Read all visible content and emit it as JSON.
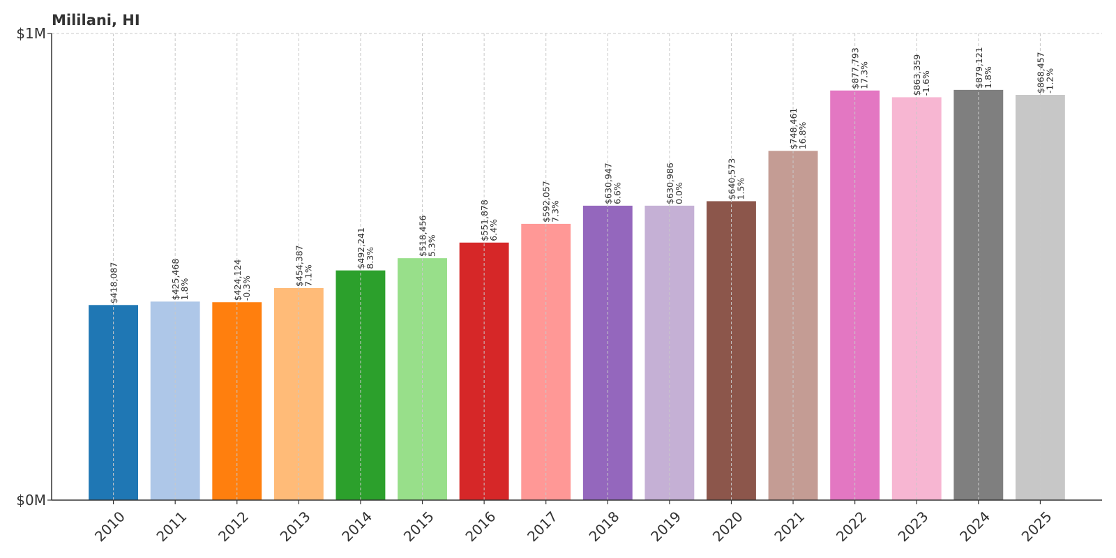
{
  "chart_data": {
    "type": "bar",
    "title": "Mililani, HI",
    "xlabel": "",
    "ylabel": "",
    "ylim": [
      0,
      1000000
    ],
    "yticks": [
      {
        "value": 0,
        "label": "$0M"
      },
      {
        "value": 1000000,
        "label": "$1M"
      }
    ],
    "grid": true,
    "legend": "none",
    "categories": [
      "2010",
      "2011",
      "2012",
      "2013",
      "2014",
      "2015",
      "2016",
      "2017",
      "2018",
      "2019",
      "2020",
      "2021",
      "2022",
      "2023",
      "2024",
      "2025"
    ],
    "values": [
      418087,
      425468,
      424124,
      454387,
      492241,
      518456,
      551878,
      592057,
      630947,
      630986,
      640573,
      748461,
      877793,
      863359,
      879121,
      868457
    ],
    "value_labels": [
      "$418,087",
      "$425,468",
      "$424,124",
      "$454,387",
      "$492,241",
      "$518,456",
      "$551,878",
      "$592,057",
      "$630,947",
      "$630,986",
      "$640,573",
      "$748,461",
      "$877,793",
      "$863,359",
      "$879,121",
      "$868,457"
    ],
    "change_labels": [
      "",
      "1.8%",
      "-0.3%",
      "7.1%",
      "8.3%",
      "5.3%",
      "6.4%",
      "7.3%",
      "6.6%",
      "0.0%",
      "1.5%",
      "16.8%",
      "17.3%",
      "-1.6%",
      "1.8%",
      "-1.2%"
    ],
    "colors": [
      "#1f77b4",
      "#aec7e8",
      "#ff7f0e",
      "#ffbb78",
      "#2ca02c",
      "#98df8a",
      "#d62728",
      "#ff9896",
      "#9467bd",
      "#c5b0d5",
      "#8c564b",
      "#c49c94",
      "#e377c2",
      "#f7b6d2",
      "#7f7f7f",
      "#c7c7c7"
    ]
  }
}
